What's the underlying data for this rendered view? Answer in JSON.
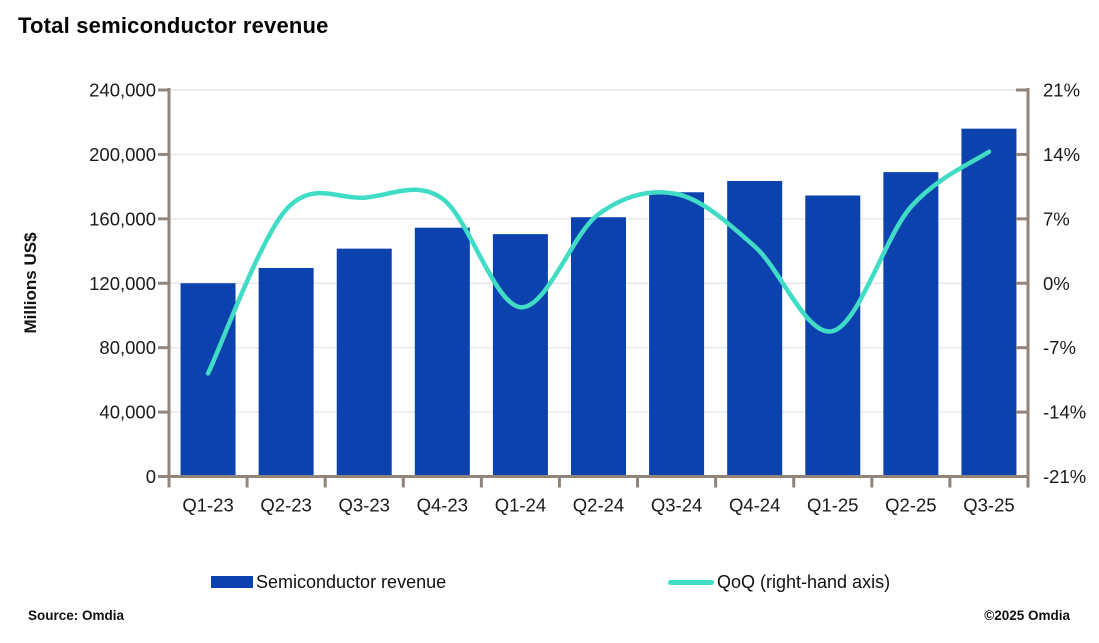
{
  "title": "Total semiconductor revenue",
  "legend": {
    "bar_label": "Semiconductor revenue",
    "line_label": "QoQ (right-hand axis)"
  },
  "footer": {
    "source": "Source: Omdia",
    "copyright": "©2025 Omdia"
  },
  "colors": {
    "bar": "#0b42ae",
    "line": "#40dcc6",
    "axis": "#91857b",
    "grid": "#e8e8e8",
    "tick_text": "#1a1a1a"
  },
  "chart_data": {
    "type": "bar",
    "subtype": "bar-line combo, line on secondary axis, smoothed",
    "title": "Total semiconductor revenue",
    "categories": [
      "Q1-23",
      "Q2-23",
      "Q3-23",
      "Q4-23",
      "Q1-24",
      "Q2-24",
      "Q3-24",
      "Q4-24",
      "Q1-25",
      "Q2-25",
      "Q3-25"
    ],
    "series": [
      {
        "name": "Semiconductor revenue",
        "type": "bar",
        "axis": "left",
        "values": [
          120000,
          129500,
          141500,
          154500,
          150500,
          161000,
          176500,
          183500,
          174500,
          189000,
          216000
        ]
      },
      {
        "name": "QoQ (right-hand axis)",
        "type": "line",
        "axis": "right",
        "values": [
          -9.8,
          8.0,
          9.3,
          9.2,
          -2.6,
          7.5,
          9.7,
          4.0,
          -5.2,
          8.3,
          14.3
        ]
      }
    ],
    "left_axis": {
      "title": "Millions US$",
      "min": 0,
      "max": 240000,
      "tick_values": [
        0,
        40000,
        80000,
        120000,
        160000,
        200000,
        240000
      ],
      "tick_labels": [
        "0",
        "40,000",
        "80,000",
        "120,000",
        "160,000",
        "200,000",
        "240,000"
      ]
    },
    "right_axis": {
      "title": "",
      "min": -21,
      "max": 21,
      "tick_values": [
        -21,
        -14,
        -7,
        0,
        7,
        14,
        21
      ],
      "tick_labels": [
        "-21%",
        "-14%",
        "-7%",
        "0%",
        "7%",
        "14%",
        "21%"
      ]
    },
    "grid": "horizontal",
    "legend_position": "bottom"
  }
}
